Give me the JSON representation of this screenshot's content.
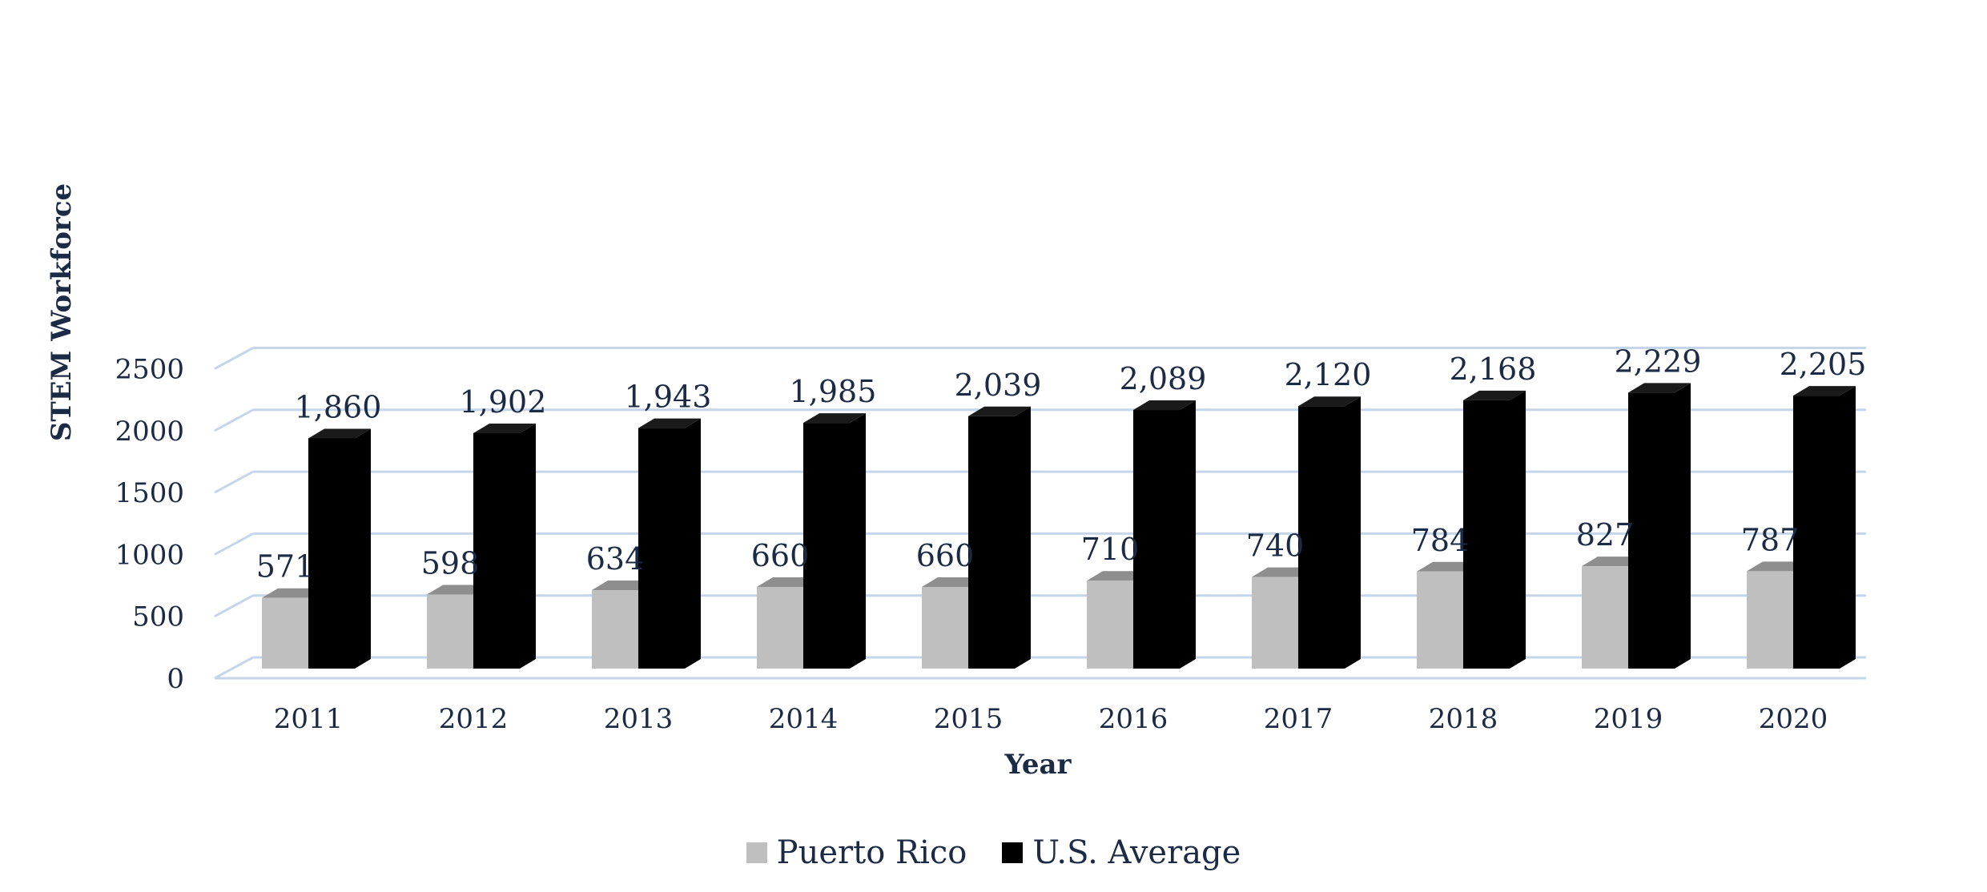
{
  "chart_data": {
    "type": "bar",
    "categories": [
      "2011",
      "2012",
      "2013",
      "2014",
      "2015",
      "2016",
      "2017",
      "2018",
      "2019",
      "2020"
    ],
    "series": [
      {
        "name": "Puerto Rico",
        "values": [
          571,
          598,
          634,
          660,
          660,
          710,
          740,
          784,
          827,
          787
        ],
        "labels": [
          "571",
          "598",
          "634",
          "660",
          "660",
          "710",
          "740",
          "784",
          "827",
          "787"
        ],
        "color": "#bfbfbf"
      },
      {
        "name": "U.S. Average",
        "values": [
          1860,
          1902,
          1943,
          1985,
          2039,
          2089,
          2120,
          2168,
          2229,
          2205
        ],
        "labels": [
          "1,860",
          "1,902",
          "1,943",
          "1,985",
          "2,039",
          "2,089",
          "2,120",
          "2,168",
          "2,229",
          "2,205"
        ],
        "color": "#000000"
      }
    ],
    "ylim": [
      0,
      2500
    ],
    "yticks": [
      "0",
      "500",
      "1000",
      "1500",
      "2000",
      "2500"
    ],
    "xlabel": "Year",
    "ylabel": "STEM Workforce",
    "grid": true,
    "legend": "bottom",
    "gridline_color": "#c6d6ea",
    "text_color": "#1c2b45"
  }
}
